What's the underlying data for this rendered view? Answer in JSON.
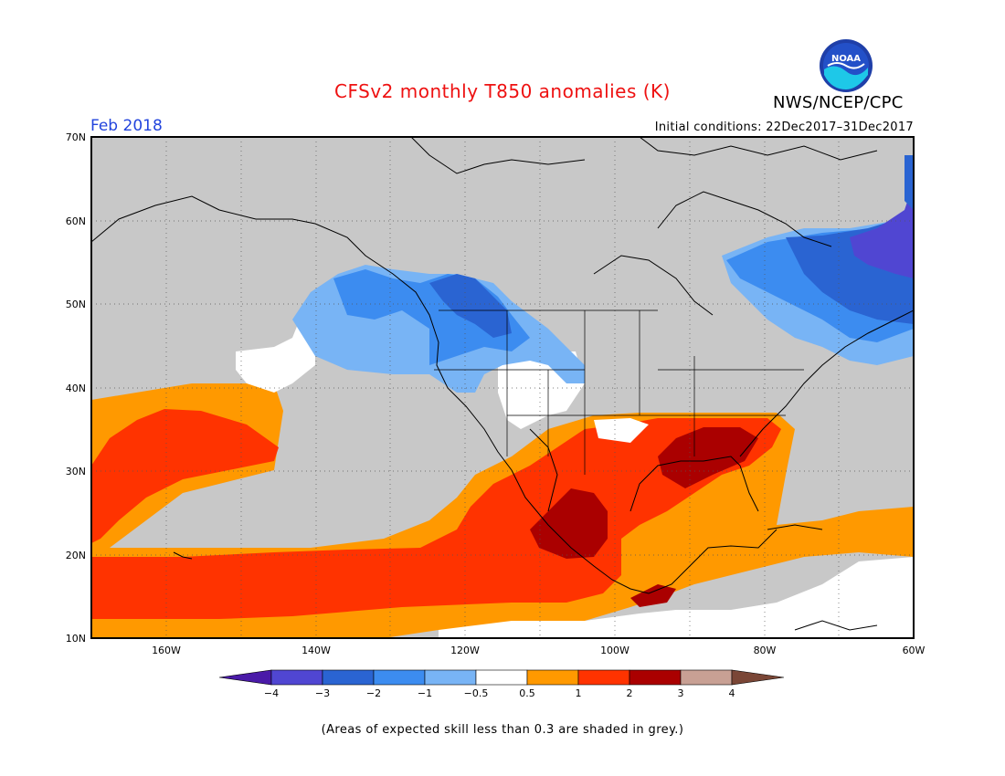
{
  "header": {
    "title": "CFSv2 monthly T850 anomalies (K)",
    "organization": "NWS/NCEP/CPC",
    "logo_text": "NOAA"
  },
  "map": {
    "valid_month": "Feb 2018",
    "initial_conditions": "Initial conditions: 22Dec2017–31Dec2017",
    "lat_ticks": [
      "70N",
      "60N",
      "50N",
      "40N",
      "30N",
      "20N",
      "10N"
    ],
    "lon_ticks": [
      "160W",
      "140W",
      "120W",
      "100W",
      "80W",
      "60W"
    ],
    "grey_color": "#c8c8c8"
  },
  "colorbar": {
    "labels": [
      "−4",
      "−3",
      "−2",
      "−1",
      "−0.5",
      "0.5",
      "1",
      "2",
      "3",
      "4"
    ],
    "colors": [
      "#4a1aa8",
      "#5046d2",
      "#2a64d2",
      "#3c8cf0",
      "#78b4f5",
      "#ffffff",
      "#ff9900",
      "#ff3300",
      "#aa0000",
      "#c8a094",
      "#7a4636"
    ]
  },
  "footer": {
    "note": "(Areas of expected skill less than 0.3 are shaded in grey.)"
  }
}
